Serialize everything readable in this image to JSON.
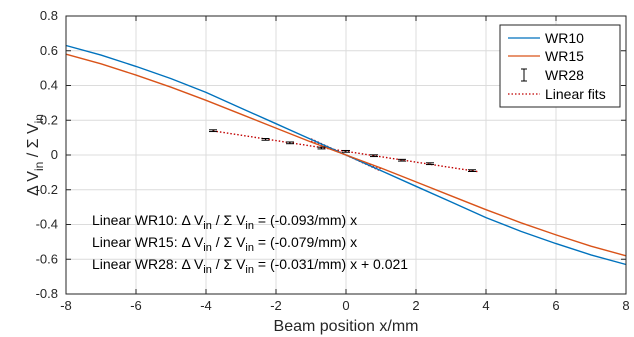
{
  "chart_data": {
    "type": "line",
    "xlabel": "Beam position x/mm",
    "ylabel": "Δ V_in / Σ V_in",
    "ylabel_parts": {
      "a": "Δ V",
      "a_sub": "in",
      "b": " / Σ V",
      "b_sub": "in"
    },
    "xlim": [
      -8,
      8
    ],
    "ylim": [
      -0.8,
      0.8
    ],
    "xticks": [
      -8,
      -6,
      -4,
      -2,
      0,
      2,
      4,
      6,
      8
    ],
    "yticks": [
      -0.8,
      -0.6,
      -0.4,
      -0.2,
      0,
      0.2,
      0.4,
      0.6,
      0.8
    ],
    "grid": true,
    "legend_position": "top-right",
    "colors": {
      "WR10": "#0072BD",
      "WR15": "#D95319",
      "WR28": "#000000",
      "fit": "#C00000"
    },
    "series": [
      {
        "name": "WR10",
        "style": "line",
        "x": [
          -8,
          -7,
          -6,
          -5,
          -4,
          -3,
          -2,
          -1,
          0,
          1,
          2,
          3,
          4,
          5,
          6,
          7,
          8
        ],
        "y": [
          0.63,
          0.575,
          0.51,
          0.44,
          0.36,
          0.27,
          0.18,
          0.09,
          0.0,
          -0.09,
          -0.18,
          -0.27,
          -0.36,
          -0.44,
          -0.51,
          -0.575,
          -0.63
        ]
      },
      {
        "name": "WR15",
        "style": "line",
        "x": [
          -8,
          -7,
          -6,
          -5,
          -4,
          -3,
          -2,
          -1,
          0,
          1,
          2,
          3,
          4,
          5,
          6,
          7,
          8
        ],
        "y": [
          0.58,
          0.525,
          0.46,
          0.39,
          0.315,
          0.235,
          0.155,
          0.075,
          0.0,
          -0.075,
          -0.155,
          -0.235,
          -0.315,
          -0.39,
          -0.46,
          -0.525,
          -0.58
        ]
      },
      {
        "name": "WR28",
        "style": "errorbar",
        "x": [
          -3.8,
          -2.3,
          -1.6,
          -0.7,
          0,
          0.8,
          1.6,
          2.4,
          3.6
        ],
        "y": [
          0.14,
          0.09,
          0.07,
          0.04,
          0.021,
          -0.004,
          -0.03,
          -0.05,
          -0.09
        ],
        "err": [
          0.005,
          0.005,
          0.005,
          0.005,
          0.005,
          0.005,
          0.005,
          0.005,
          0.005
        ]
      },
      {
        "name": "Linear fits",
        "style": "dotted",
        "fits": [
          {
            "x": [
              -3.8,
              3.8
            ],
            "slope": -0.031,
            "intercept": 0.021
          },
          {
            "x": [
              -1.0,
              1.0
            ],
            "slope": -0.093,
            "intercept": 0.0
          },
          {
            "x": [
              -1.0,
              1.0
            ],
            "slope": -0.079,
            "intercept": 0.0
          }
        ]
      }
    ],
    "legend": [
      "WR10",
      "WR15",
      "WR28",
      "Linear fits"
    ],
    "annotations": [
      {
        "pre": "Linear WR10: Δ V",
        "sub1": "in",
        "mid": " / Σ V",
        "sub2": "in",
        "post": " = (-0.093/mm) x"
      },
      {
        "pre": "Linear WR15: Δ V",
        "sub1": "in",
        "mid": " / Σ V",
        "sub2": "in",
        "post": " = (-0.079/mm) x"
      },
      {
        "pre": "Linear WR28: Δ V",
        "sub1": "in",
        "mid": " / Σ V",
        "sub2": "in",
        "post": " = (-0.031/mm) x + 0.021"
      }
    ]
  }
}
